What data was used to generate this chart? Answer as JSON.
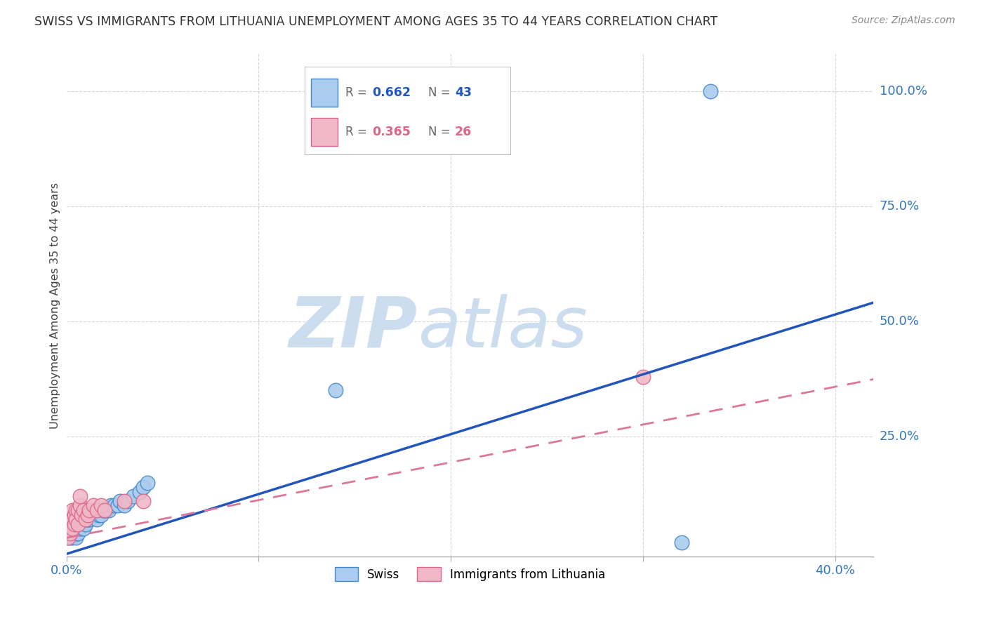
{
  "title": "SWISS VS IMMIGRANTS FROM LITHUANIA UNEMPLOYMENT AMONG AGES 35 TO 44 YEARS CORRELATION CHART",
  "source": "Source: ZipAtlas.com",
  "ylabel": "Unemployment Among Ages 35 to 44 years",
  "xlim": [
    0.0,
    0.42
  ],
  "ylim": [
    -0.01,
    1.08
  ],
  "ytick_positions": [
    0.25,
    0.5,
    0.75,
    1.0
  ],
  "ytick_labels": [
    "25.0%",
    "50.0%",
    "75.0%",
    "100.0%"
  ],
  "grid_color": "#cccccc",
  "background_color": "#ffffff",
  "swiss_color": "#aaccee",
  "swiss_edge_color": "#4488cc",
  "lithuania_color": "#f0b8c8",
  "lithuania_edge_color": "#dd6688",
  "swiss_line_color": "#2255bb",
  "lithuania_line_color": "#dd7799",
  "swiss_slope": 1.3,
  "swiss_intercept": -0.005,
  "lith_slope": 0.82,
  "lith_intercept": 0.03,
  "watermark_zip": "ZIP",
  "watermark_atlas": "atlas",
  "watermark_color": "#ccddf0",
  "swiss_x": [
    0.001,
    0.002,
    0.002,
    0.003,
    0.003,
    0.003,
    0.004,
    0.004,
    0.005,
    0.005,
    0.005,
    0.006,
    0.006,
    0.007,
    0.007,
    0.008,
    0.009,
    0.01,
    0.01,
    0.011,
    0.012,
    0.013,
    0.014,
    0.015,
    0.016,
    0.017,
    0.018,
    0.019,
    0.02,
    0.021,
    0.022,
    0.023,
    0.025,
    0.027,
    0.028,
    0.03,
    0.032,
    0.035,
    0.038,
    0.04,
    0.042,
    0.14,
    0.32,
    0.335
  ],
  "swiss_y": [
    0.03,
    0.03,
    0.04,
    0.03,
    0.04,
    0.05,
    0.04,
    0.06,
    0.03,
    0.04,
    0.06,
    0.04,
    0.05,
    0.05,
    0.07,
    0.06,
    0.05,
    0.06,
    0.07,
    0.07,
    0.07,
    0.08,
    0.09,
    0.08,
    0.07,
    0.08,
    0.08,
    0.09,
    0.09,
    0.09,
    0.09,
    0.1,
    0.1,
    0.1,
    0.11,
    0.1,
    0.11,
    0.12,
    0.13,
    0.14,
    0.15,
    0.35,
    0.02,
    1.0
  ],
  "swiss_x2": [
    0.335
  ],
  "swiss_y2": [
    1.0
  ],
  "lith_x": [
    0.001,
    0.002,
    0.002,
    0.003,
    0.003,
    0.004,
    0.004,
    0.005,
    0.005,
    0.006,
    0.006,
    0.007,
    0.007,
    0.008,
    0.009,
    0.01,
    0.011,
    0.012,
    0.014,
    0.016,
    0.018,
    0.02,
    0.03,
    0.04,
    0.3
  ],
  "lith_y": [
    0.03,
    0.04,
    0.07,
    0.05,
    0.09,
    0.06,
    0.08,
    0.09,
    0.07,
    0.06,
    0.09,
    0.1,
    0.12,
    0.08,
    0.09,
    0.07,
    0.08,
    0.09,
    0.1,
    0.09,
    0.1,
    0.09,
    0.11,
    0.11,
    0.38
  ]
}
